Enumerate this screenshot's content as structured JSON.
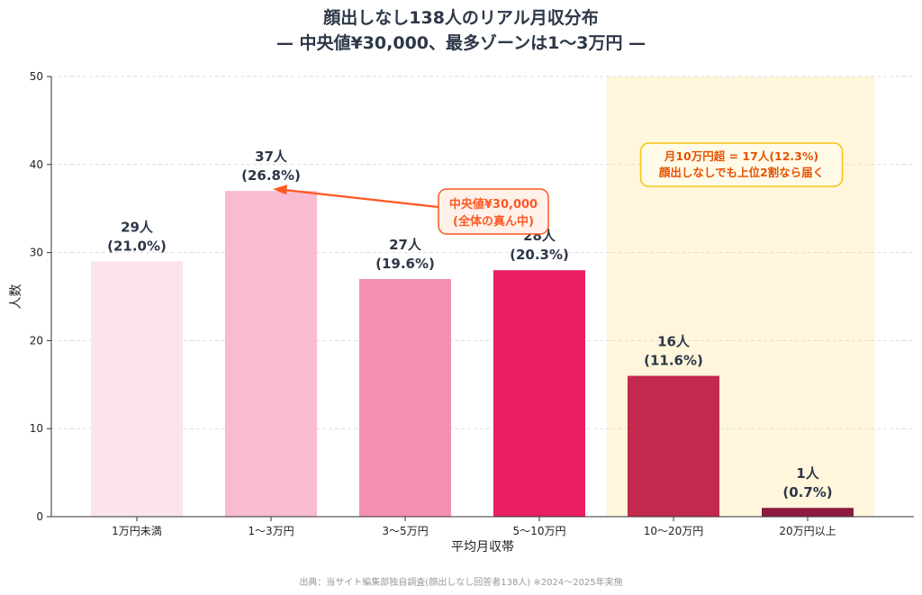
{
  "chart_data": {
    "type": "bar",
    "title_line1": "顔出しなし138人のリアル月収分布",
    "title_line2": "— 中央値¥30,000、最多ゾーンは1〜3万円 —",
    "xlabel": "平均月収帯",
    "ylabel": "人数",
    "ylim": [
      0,
      50
    ],
    "yticks": [
      "0",
      "10",
      "20",
      "30",
      "40",
      "50"
    ],
    "grid": true,
    "categories": [
      "1万円未満",
      "1〜3万円",
      "3〜5万円",
      "5〜10万円",
      "10〜20万円",
      "20万円以上"
    ],
    "values": [
      29,
      37,
      27,
      28,
      16,
      1
    ],
    "value_labels": [
      "29人",
      "37人",
      "27人",
      "28人",
      "16人",
      "1人"
    ],
    "pct_labels": [
      "(21.0%)",
      "(26.8%)",
      "(19.6%)",
      "(20.3%)",
      "(11.6%)",
      "(0.7%)"
    ],
    "colors": [
      "#fce4ec",
      "#f8bbd0",
      "#f48fb1",
      "#e91e63",
      "#c2294e",
      "#8e1b3e"
    ],
    "highlight_band": {
      "categories": [
        "10〜20万円",
        "20万円以上"
      ],
      "color": "#fff6dc",
      "note_line1": "月10万円超 = 17人(12.3%)",
      "note_line2": "顔出しなしでも上位2割なら届く",
      "note_border": "#f5c518",
      "note_text_color": "#e65100"
    },
    "annotation": {
      "line1": "中央値¥30,000",
      "line2": "(全体の真ん中)",
      "target_category": "1〜3万円",
      "color": "#ff5722",
      "fill": "#fff1ea"
    }
  },
  "source": "出典：当サイト編集部独自調査(顔出しなし回答者138人) ※2024〜2025年実施"
}
